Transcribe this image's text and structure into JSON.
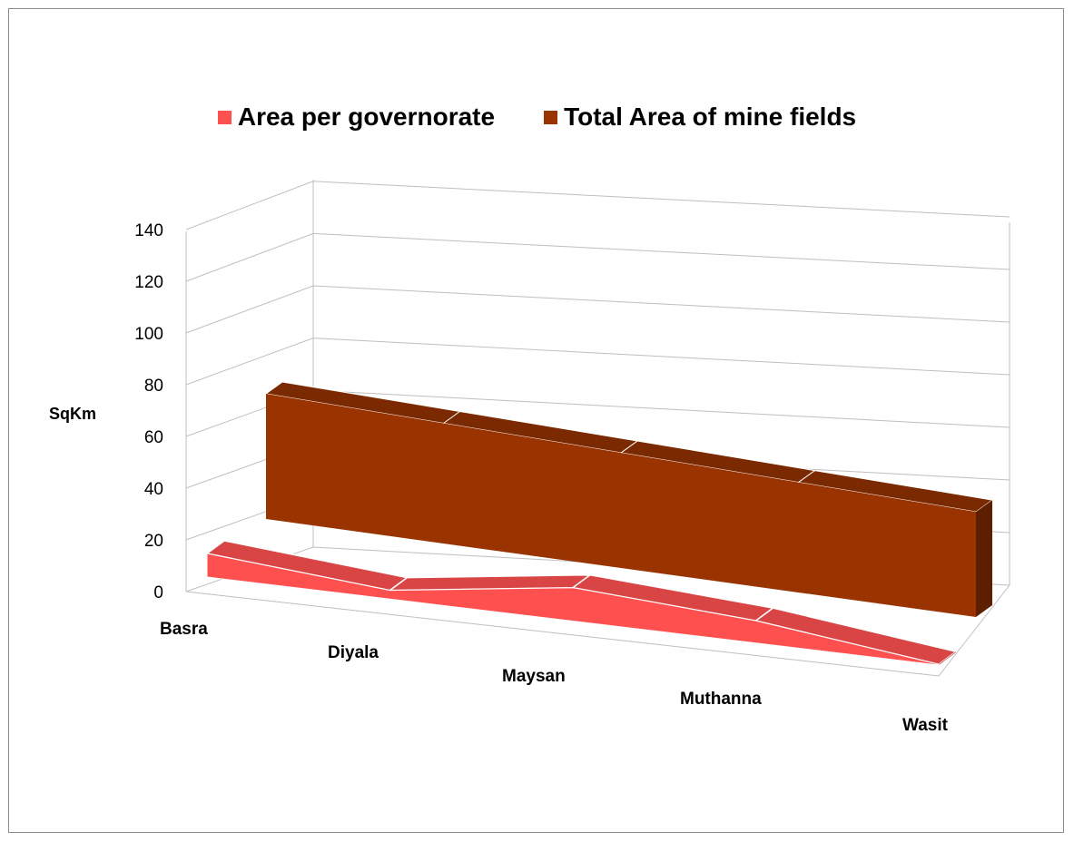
{
  "chart_data": {
    "type": "area",
    "subtype": "3d-area",
    "title": "",
    "xlabel": "",
    "ylabel": "SqKm",
    "ylim": [
      0,
      140
    ],
    "yticks": [
      0,
      20,
      40,
      60,
      80,
      100,
      120,
      140
    ],
    "categories": [
      "Basra",
      "Diyala",
      "Maysan",
      "Muthanna",
      "Wasit"
    ],
    "series": [
      {
        "name": "Area per governorate",
        "values": [
          26,
          10,
          40,
          28,
          1
        ],
        "color": "#ff5050"
      },
      {
        "name": "Total Area of mine fields",
        "values": [
          138,
          138,
          138,
          138,
          138
        ],
        "color": "#993300"
      }
    ],
    "legend_position": "top",
    "gridlines": true
  }
}
